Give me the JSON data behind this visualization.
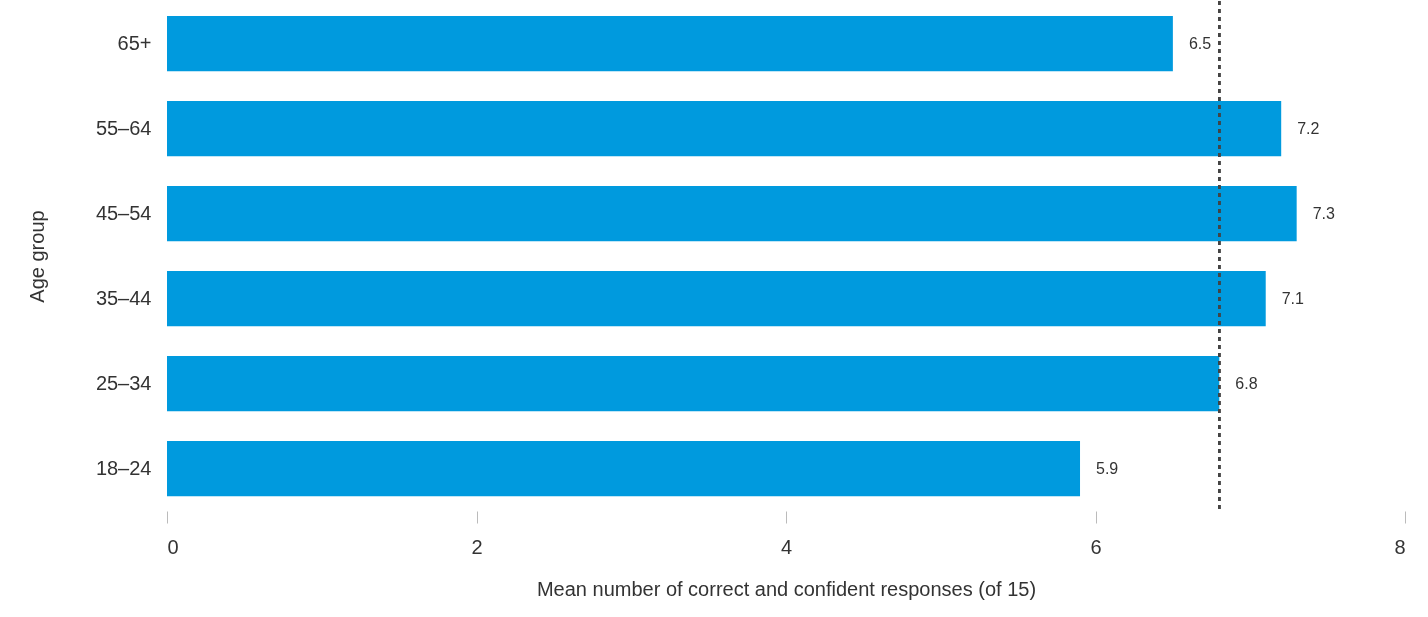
{
  "chart_data": {
    "type": "bar",
    "orientation": "horizontal",
    "xlabel": "Mean number of correct and confident responses (of 15)",
    "ylabel": "Age group",
    "categories": [
      "65+",
      "55–64",
      "45–54",
      "35–44",
      "25–34",
      "18–24"
    ],
    "values": [
      6.5,
      7.2,
      7.3,
      7.1,
      6.8,
      5.9
    ],
    "color": "#009ade",
    "xlim": [
      0,
      8
    ],
    "xticks": [
      0,
      2,
      4,
      6,
      8
    ],
    "grid": false,
    "data_labels": true,
    "ref_lines": [
      {
        "axis": "x",
        "value": 6.8,
        "color": "#444444",
        "line_style": "dotted"
      }
    ]
  }
}
